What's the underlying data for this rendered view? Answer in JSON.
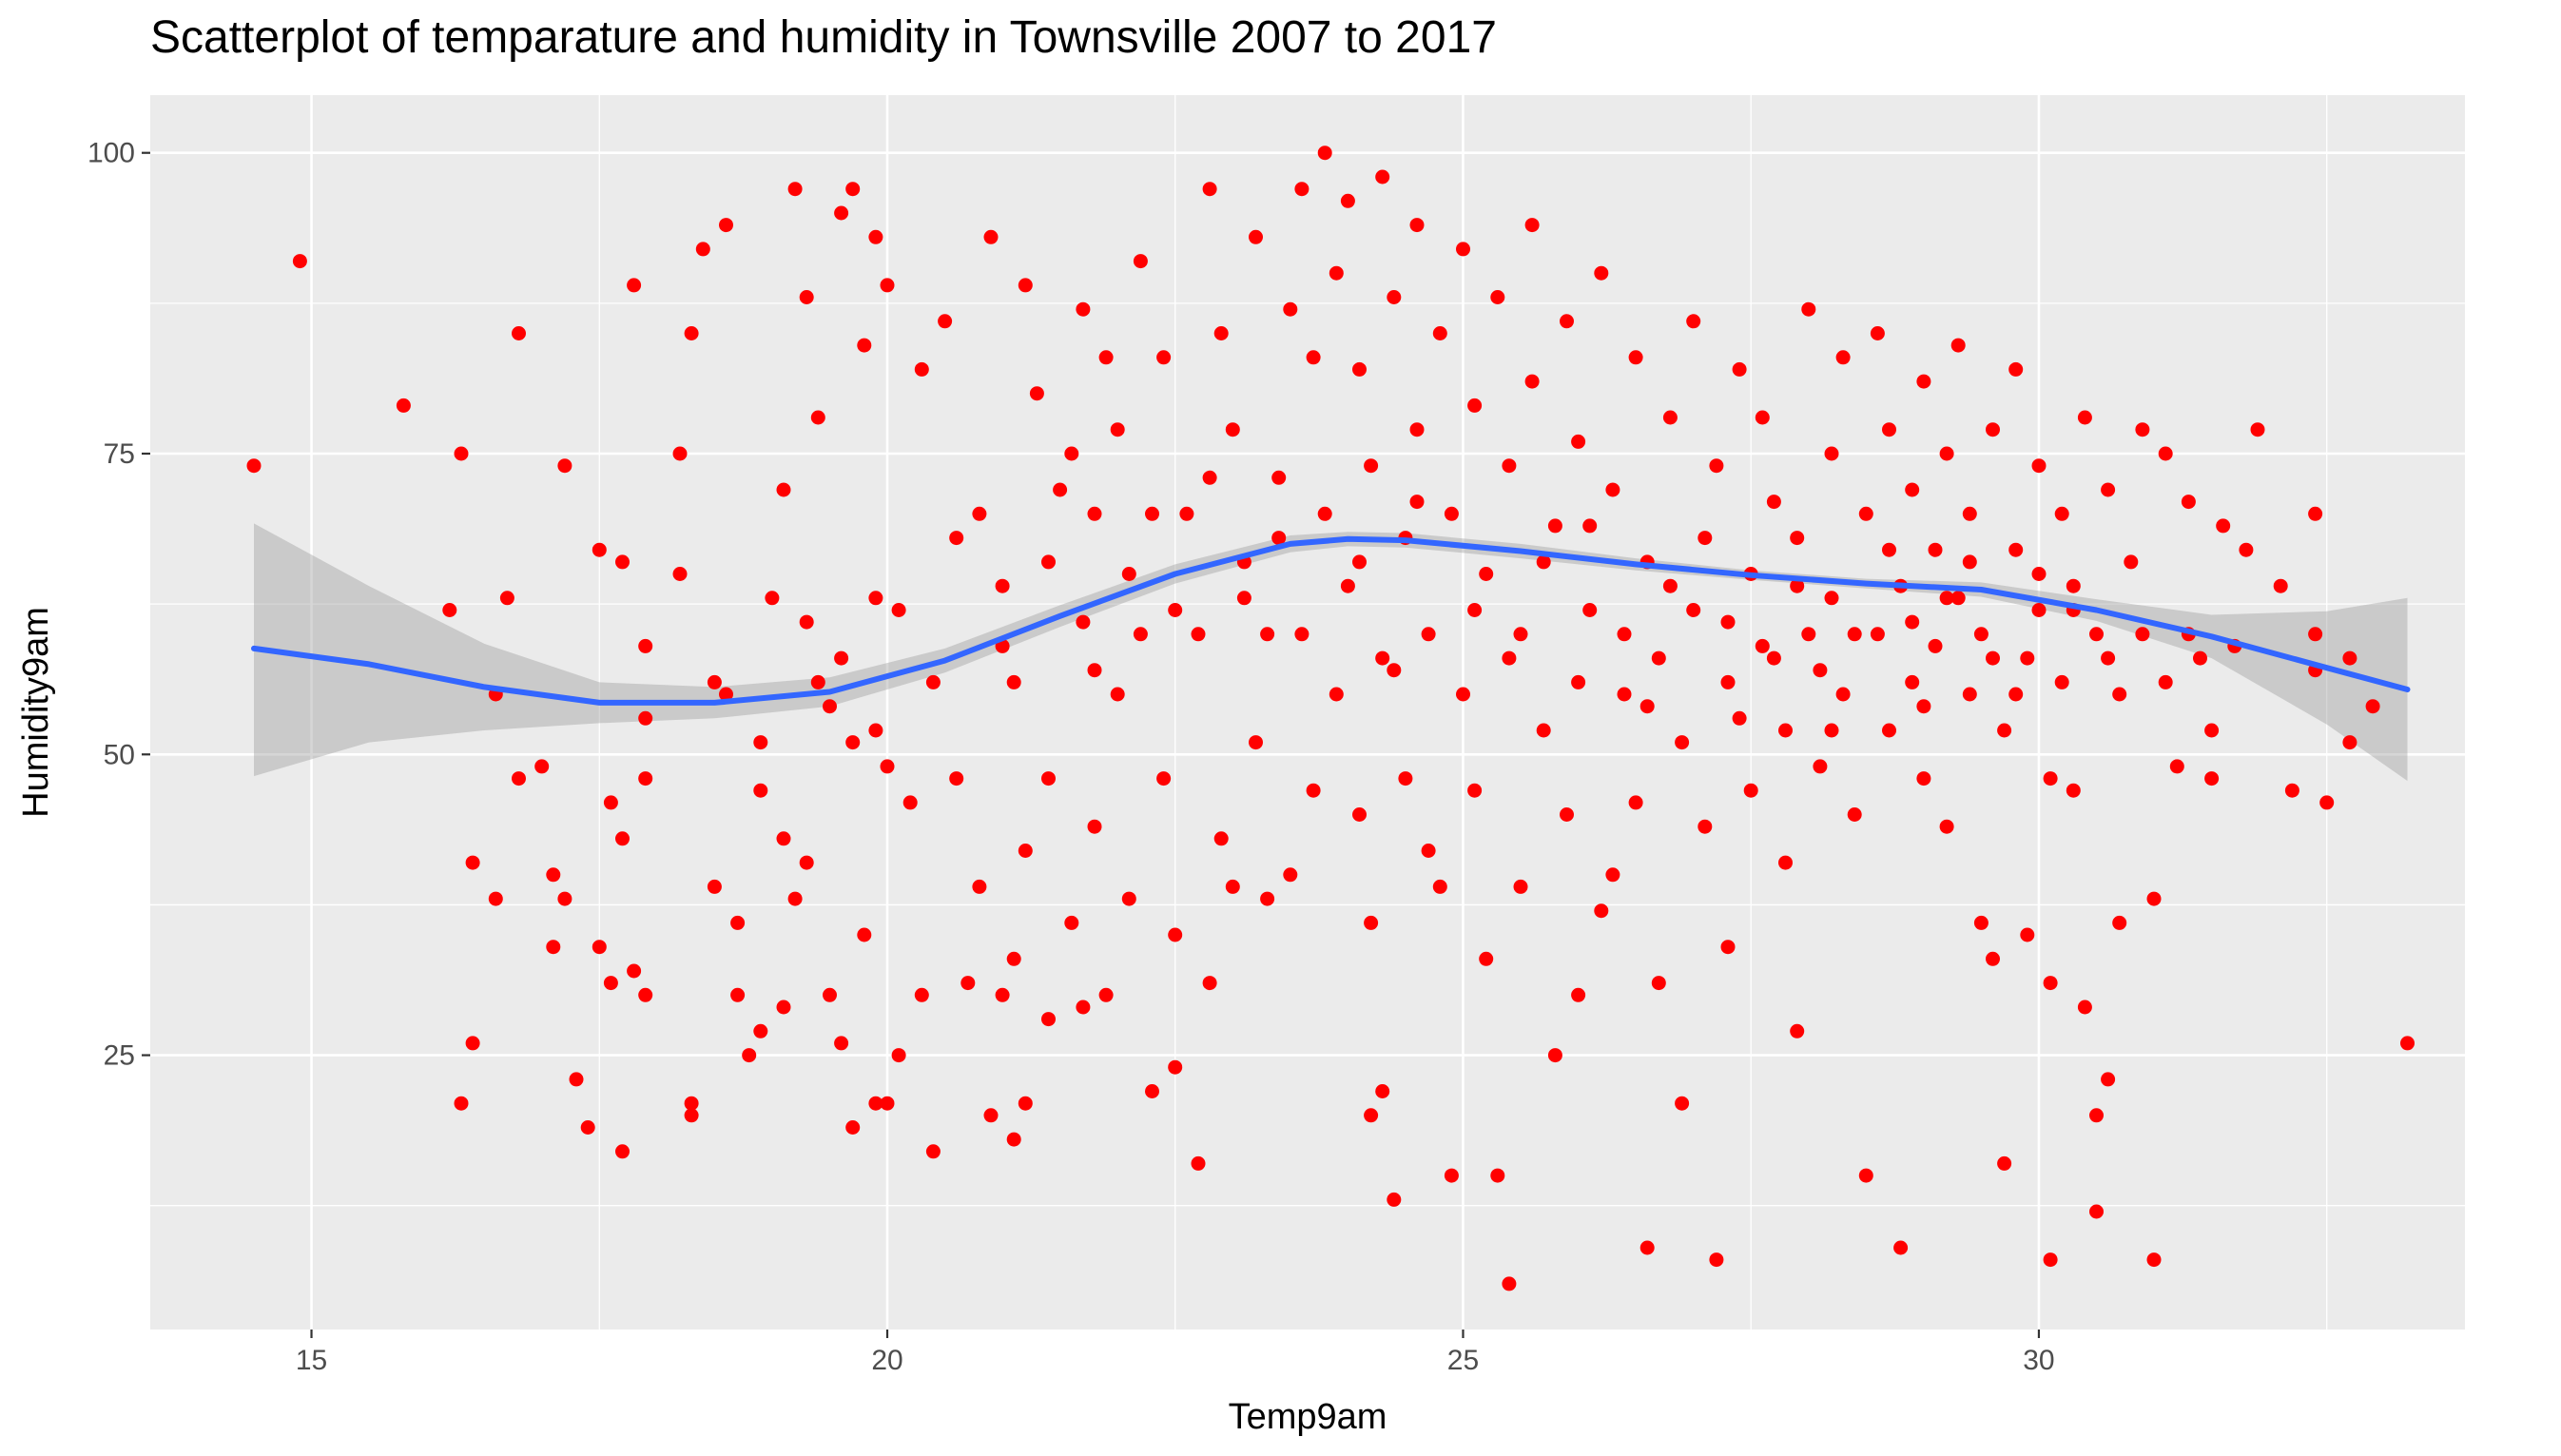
{
  "chart_data": {
    "type": "scatter",
    "title": "Scatterplot of temparature and humidity in Townsville 2007 to 2017",
    "xlabel": "Temp9am",
    "ylabel": "Humidity9am",
    "xlim": [
      13.6,
      33.7
    ],
    "ylim": [
      2.2,
      104.8
    ],
    "x_ticks": [
      15,
      20,
      25,
      30
    ],
    "y_ticks": [
      25,
      50,
      75,
      100
    ],
    "grid": true,
    "colors": {
      "points": "#ff0000",
      "smooth": "#3366ff",
      "ribbon": "#999999",
      "panel": "#ebebeb",
      "grid": "#ffffff"
    },
    "smooth": {
      "x": [
        14.5,
        15.5,
        16.5,
        17.5,
        18.5,
        19.5,
        20.5,
        21.5,
        22.5,
        23.5,
        24.0,
        24.5,
        25.5,
        26.5,
        27.5,
        28.5,
        29.5,
        30.5,
        31.5,
        32.5,
        33.2
      ],
      "y": [
        58.8,
        57.5,
        55.6,
        54.3,
        54.3,
        55.2,
        57.8,
        61.5,
        65.0,
        67.5,
        67.9,
        67.8,
        66.9,
        65.8,
        64.9,
        64.2,
        63.7,
        62.0,
        59.8,
        57.2,
        55.4
      ],
      "lower": [
        48.2,
        51.0,
        52.0,
        52.6,
        53.0,
        54.0,
        56.8,
        60.6,
        64.2,
        66.8,
        67.3,
        67.2,
        66.3,
        65.3,
        64.5,
        63.8,
        63.1,
        61.1,
        58.0,
        52.5,
        47.8
      ],
      "upper": [
        69.2,
        64.0,
        59.2,
        56.0,
        55.6,
        56.4,
        58.8,
        62.4,
        65.8,
        68.2,
        68.5,
        68.4,
        67.5,
        66.3,
        65.3,
        64.6,
        64.3,
        62.9,
        61.6,
        61.9,
        63.0
      ]
    },
    "points": [
      [
        14.5,
        74
      ],
      [
        14.9,
        91
      ],
      [
        15.8,
        79
      ],
      [
        16.2,
        62
      ],
      [
        16.3,
        75
      ],
      [
        16.3,
        21
      ],
      [
        16.4,
        41
      ],
      [
        16.4,
        26
      ],
      [
        16.6,
        55
      ],
      [
        16.6,
        38
      ],
      [
        16.7,
        63
      ],
      [
        16.8,
        85
      ],
      [
        16.8,
        48
      ],
      [
        17.0,
        49
      ],
      [
        17.1,
        40
      ],
      [
        17.1,
        34
      ],
      [
        17.2,
        74
      ],
      [
        17.2,
        38
      ],
      [
        17.3,
        23
      ],
      [
        17.4,
        19
      ],
      [
        17.5,
        34
      ],
      [
        17.5,
        67
      ],
      [
        17.6,
        46
      ],
      [
        17.6,
        31
      ],
      [
        17.7,
        43
      ],
      [
        17.7,
        66
      ],
      [
        17.7,
        17
      ],
      [
        17.8,
        89
      ],
      [
        17.8,
        32
      ],
      [
        17.9,
        53
      ],
      [
        17.9,
        48
      ],
      [
        17.9,
        59
      ],
      [
        17.9,
        30
      ],
      [
        18.2,
        75
      ],
      [
        18.2,
        65
      ],
      [
        18.3,
        85
      ],
      [
        18.3,
        21
      ],
      [
        18.3,
        20
      ],
      [
        18.4,
        92
      ],
      [
        18.5,
        39
      ],
      [
        18.6,
        94
      ],
      [
        18.6,
        55
      ],
      [
        18.7,
        30
      ],
      [
        18.7,
        36
      ],
      [
        18.8,
        25
      ],
      [
        18.9,
        47
      ],
      [
        18.9,
        27
      ],
      [
        19.0,
        63
      ],
      [
        19.1,
        72
      ],
      [
        19.1,
        43
      ],
      [
        19.1,
        29
      ],
      [
        19.2,
        97
      ],
      [
        19.2,
        38
      ],
      [
        19.3,
        88
      ],
      [
        19.3,
        41
      ],
      [
        19.4,
        78
      ],
      [
        19.4,
        56
      ],
      [
        19.5,
        30
      ],
      [
        19.6,
        95
      ],
      [
        19.6,
        26
      ],
      [
        19.7,
        97
      ],
      [
        19.7,
        51
      ],
      [
        19.7,
        19
      ],
      [
        19.8,
        84
      ],
      [
        19.8,
        35
      ],
      [
        19.9,
        93
      ],
      [
        19.9,
        63
      ],
      [
        19.9,
        21
      ],
      [
        20.0,
        89
      ],
      [
        20.0,
        49
      ],
      [
        20.0,
        21
      ],
      [
        20.1,
        25
      ],
      [
        20.2,
        46
      ],
      [
        20.3,
        82
      ],
      [
        20.3,
        30
      ],
      [
        20.4,
        17
      ],
      [
        20.5,
        86
      ],
      [
        20.6,
        48
      ],
      [
        20.7,
        31
      ],
      [
        20.8,
        70
      ],
      [
        20.8,
        39
      ],
      [
        20.9,
        93
      ],
      [
        20.9,
        20
      ],
      [
        21.0,
        64
      ],
      [
        21.0,
        30
      ],
      [
        21.1,
        56
      ],
      [
        21.1,
        33
      ],
      [
        21.1,
        18
      ],
      [
        21.2,
        89
      ],
      [
        21.2,
        42
      ],
      [
        21.2,
        21
      ],
      [
        21.3,
        80
      ],
      [
        21.4,
        48
      ],
      [
        21.4,
        28
      ],
      [
        21.6,
        75
      ],
      [
        21.6,
        36
      ],
      [
        21.7,
        87
      ],
      [
        21.7,
        29
      ],
      [
        21.8,
        70
      ],
      [
        21.8,
        44
      ],
      [
        21.9,
        83
      ],
      [
        21.9,
        30
      ],
      [
        22.0,
        77
      ],
      [
        22.0,
        55
      ],
      [
        22.1,
        38
      ],
      [
        22.2,
        91
      ],
      [
        22.2,
        60
      ],
      [
        22.3,
        22
      ],
      [
        22.4,
        83
      ],
      [
        22.4,
        48
      ],
      [
        22.5,
        35
      ],
      [
        22.5,
        24
      ],
      [
        22.6,
        70
      ],
      [
        22.7,
        60
      ],
      [
        22.7,
        16
      ],
      [
        22.8,
        97
      ],
      [
        22.8,
        31
      ],
      [
        22.9,
        85
      ],
      [
        22.9,
        43
      ],
      [
        23.0,
        77
      ],
      [
        23.0,
        39
      ],
      [
        23.1,
        66
      ],
      [
        23.2,
        93
      ],
      [
        23.2,
        51
      ],
      [
        23.3,
        38
      ],
      [
        23.4,
        73
      ],
      [
        23.5,
        87
      ],
      [
        23.5,
        40
      ],
      [
        23.6,
        97
      ],
      [
        23.6,
        60
      ],
      [
        23.7,
        83
      ],
      [
        23.7,
        47
      ],
      [
        23.8,
        100
      ],
      [
        23.8,
        70
      ],
      [
        23.9,
        90
      ],
      [
        23.9,
        55
      ],
      [
        24.0,
        96
      ],
      [
        24.0,
        64
      ],
      [
        24.1,
        82
      ],
      [
        24.1,
        45
      ],
      [
        24.2,
        74
      ],
      [
        24.2,
        36
      ],
      [
        24.2,
        20
      ],
      [
        24.3,
        98
      ],
      [
        24.3,
        58
      ],
      [
        24.3,
        22
      ],
      [
        24.4,
        88
      ],
      [
        24.4,
        13
      ],
      [
        24.5,
        68
      ],
      [
        24.5,
        48
      ],
      [
        24.6,
        94
      ],
      [
        24.6,
        77
      ],
      [
        24.7,
        60
      ],
      [
        24.7,
        42
      ],
      [
        24.8,
        85
      ],
      [
        24.8,
        39
      ],
      [
        24.9,
        70
      ],
      [
        24.9,
        15
      ],
      [
        25.0,
        92
      ],
      [
        25.0,
        55
      ],
      [
        25.1,
        79
      ],
      [
        25.1,
        47
      ],
      [
        25.2,
        65
      ],
      [
        25.2,
        33
      ],
      [
        25.3,
        88
      ],
      [
        25.3,
        15
      ],
      [
        25.4,
        74
      ],
      [
        25.4,
        6
      ],
      [
        25.5,
        60
      ],
      [
        25.5,
        39
      ],
      [
        25.6,
        94
      ],
      [
        25.6,
        81
      ],
      [
        25.7,
        52
      ],
      [
        25.8,
        69
      ],
      [
        25.8,
        25
      ],
      [
        25.9,
        86
      ],
      [
        25.9,
        45
      ],
      [
        26.0,
        76
      ],
      [
        26.0,
        30
      ],
      [
        26.1,
        62
      ],
      [
        26.2,
        90
      ],
      [
        26.2,
        37
      ],
      [
        26.3,
        72
      ],
      [
        26.3,
        40
      ],
      [
        26.4,
        55
      ],
      [
        26.5,
        83
      ],
      [
        26.5,
        46
      ],
      [
        26.6,
        66
      ],
      [
        26.6,
        9
      ],
      [
        26.7,
        58
      ],
      [
        26.7,
        31
      ],
      [
        26.8,
        78
      ],
      [
        26.9,
        51
      ],
      [
        26.9,
        21
      ],
      [
        27.0,
        86
      ],
      [
        27.0,
        62
      ],
      [
        27.1,
        44
      ],
      [
        27.2,
        74
      ],
      [
        27.2,
        8
      ],
      [
        27.3,
        56
      ],
      [
        27.3,
        34
      ],
      [
        27.4,
        82
      ],
      [
        27.5,
        65
      ],
      [
        27.5,
        47
      ],
      [
        27.6,
        78
      ],
      [
        27.6,
        59
      ],
      [
        27.7,
        71
      ],
      [
        27.8,
        52
      ],
      [
        27.8,
        41
      ],
      [
        27.9,
        27
      ],
      [
        27.9,
        68
      ],
      [
        28.0,
        87
      ],
      [
        28.0,
        60
      ],
      [
        28.1,
        49
      ],
      [
        28.2,
        75
      ],
      [
        28.2,
        63
      ],
      [
        28.3,
        83
      ],
      [
        28.3,
        55
      ],
      [
        28.4,
        45
      ],
      [
        28.5,
        70
      ],
      [
        28.5,
        15
      ],
      [
        28.6,
        60
      ],
      [
        28.6,
        85
      ],
      [
        28.7,
        52
      ],
      [
        28.7,
        77
      ],
      [
        28.8,
        64
      ],
      [
        28.8,
        9
      ],
      [
        28.9,
        72
      ],
      [
        28.9,
        56
      ],
      [
        29.0,
        81
      ],
      [
        29.0,
        48
      ],
      [
        29.1,
        67
      ],
      [
        29.1,
        59
      ],
      [
        29.2,
        75
      ],
      [
        29.2,
        44
      ],
      [
        29.3,
        63
      ],
      [
        29.3,
        84
      ],
      [
        29.4,
        55
      ],
      [
        29.4,
        70
      ],
      [
        29.5,
        36
      ],
      [
        29.5,
        60
      ],
      [
        29.6,
        77
      ],
      [
        29.6,
        33
      ],
      [
        29.7,
        52
      ],
      [
        29.7,
        16
      ],
      [
        29.8,
        67
      ],
      [
        29.8,
        82
      ],
      [
        29.9,
        58
      ],
      [
        29.9,
        35
      ],
      [
        30.0,
        74
      ],
      [
        30.0,
        62
      ],
      [
        30.1,
        48
      ],
      [
        30.1,
        31
      ],
      [
        30.1,
        8
      ],
      [
        30.2,
        70
      ],
      [
        30.2,
        56
      ],
      [
        30.3,
        64
      ],
      [
        30.3,
        47
      ],
      [
        30.4,
        78
      ],
      [
        30.4,
        29
      ],
      [
        30.5,
        60
      ],
      [
        30.5,
        12
      ],
      [
        30.5,
        20
      ],
      [
        30.6,
        72
      ],
      [
        30.6,
        23
      ],
      [
        30.7,
        55
      ],
      [
        30.7,
        36
      ],
      [
        30.8,
        66
      ],
      [
        30.9,
        77
      ],
      [
        30.9,
        60
      ],
      [
        31.0,
        38
      ],
      [
        31.0,
        8
      ],
      [
        31.1,
        75
      ],
      [
        31.1,
        56
      ],
      [
        31.2,
        49
      ],
      [
        31.3,
        71
      ],
      [
        31.3,
        60
      ],
      [
        31.4,
        58
      ],
      [
        31.5,
        52
      ],
      [
        31.5,
        48
      ],
      [
        31.6,
        69
      ],
      [
        31.7,
        59
      ],
      [
        31.8,
        67
      ],
      [
        31.9,
        77
      ],
      [
        32.1,
        64
      ],
      [
        32.2,
        47
      ],
      [
        32.4,
        70
      ],
      [
        32.4,
        60
      ],
      [
        32.4,
        57
      ],
      [
        32.5,
        46
      ],
      [
        32.7,
        51
      ],
      [
        32.7,
        58
      ],
      [
        32.9,
        54
      ],
      [
        33.2,
        26
      ],
      [
        20.1,
        62
      ],
      [
        20.6,
        68
      ],
      [
        21.4,
        66
      ],
      [
        21.5,
        72
      ],
      [
        21.7,
        61
      ],
      [
        22.1,
        65
      ],
      [
        22.3,
        70
      ],
      [
        22.8,
        73
      ],
      [
        23.1,
        63
      ],
      [
        23.4,
        68
      ],
      [
        24.1,
        66
      ],
      [
        24.6,
        71
      ],
      [
        25.1,
        62
      ],
      [
        25.7,
        66
      ],
      [
        26.1,
        69
      ],
      [
        26.8,
        64
      ],
      [
        27.3,
        61
      ],
      [
        27.7,
        58
      ],
      [
        28.1,
        57
      ],
      [
        28.4,
        60
      ],
      [
        28.9,
        61
      ],
      [
        29.2,
        63
      ],
      [
        29.6,
        58
      ],
      [
        30.0,
        65
      ],
      [
        30.3,
        62
      ],
      [
        26.4,
        60
      ],
      [
        27.1,
        68
      ],
      [
        27.9,
        64
      ],
      [
        28.7,
        67
      ],
      [
        29.4,
        66
      ],
      [
        19.3,
        61
      ],
      [
        19.6,
        58
      ],
      [
        19.9,
        52
      ],
      [
        20.4,
        56
      ],
      [
        21.0,
        59
      ],
      [
        21.8,
        57
      ],
      [
        22.5,
        62
      ],
      [
        23.3,
        60
      ],
      [
        24.4,
        57
      ],
      [
        25.4,
        58
      ],
      [
        26.0,
        56
      ],
      [
        26.6,
        54
      ],
      [
        27.4,
        53
      ],
      [
        28.2,
        52
      ],
      [
        29.0,
        54
      ],
      [
        29.8,
        55
      ],
      [
        30.6,
        58
      ],
      [
        18.5,
        56
      ],
      [
        18.9,
        51
      ],
      [
        19.5,
        54
      ]
    ]
  }
}
